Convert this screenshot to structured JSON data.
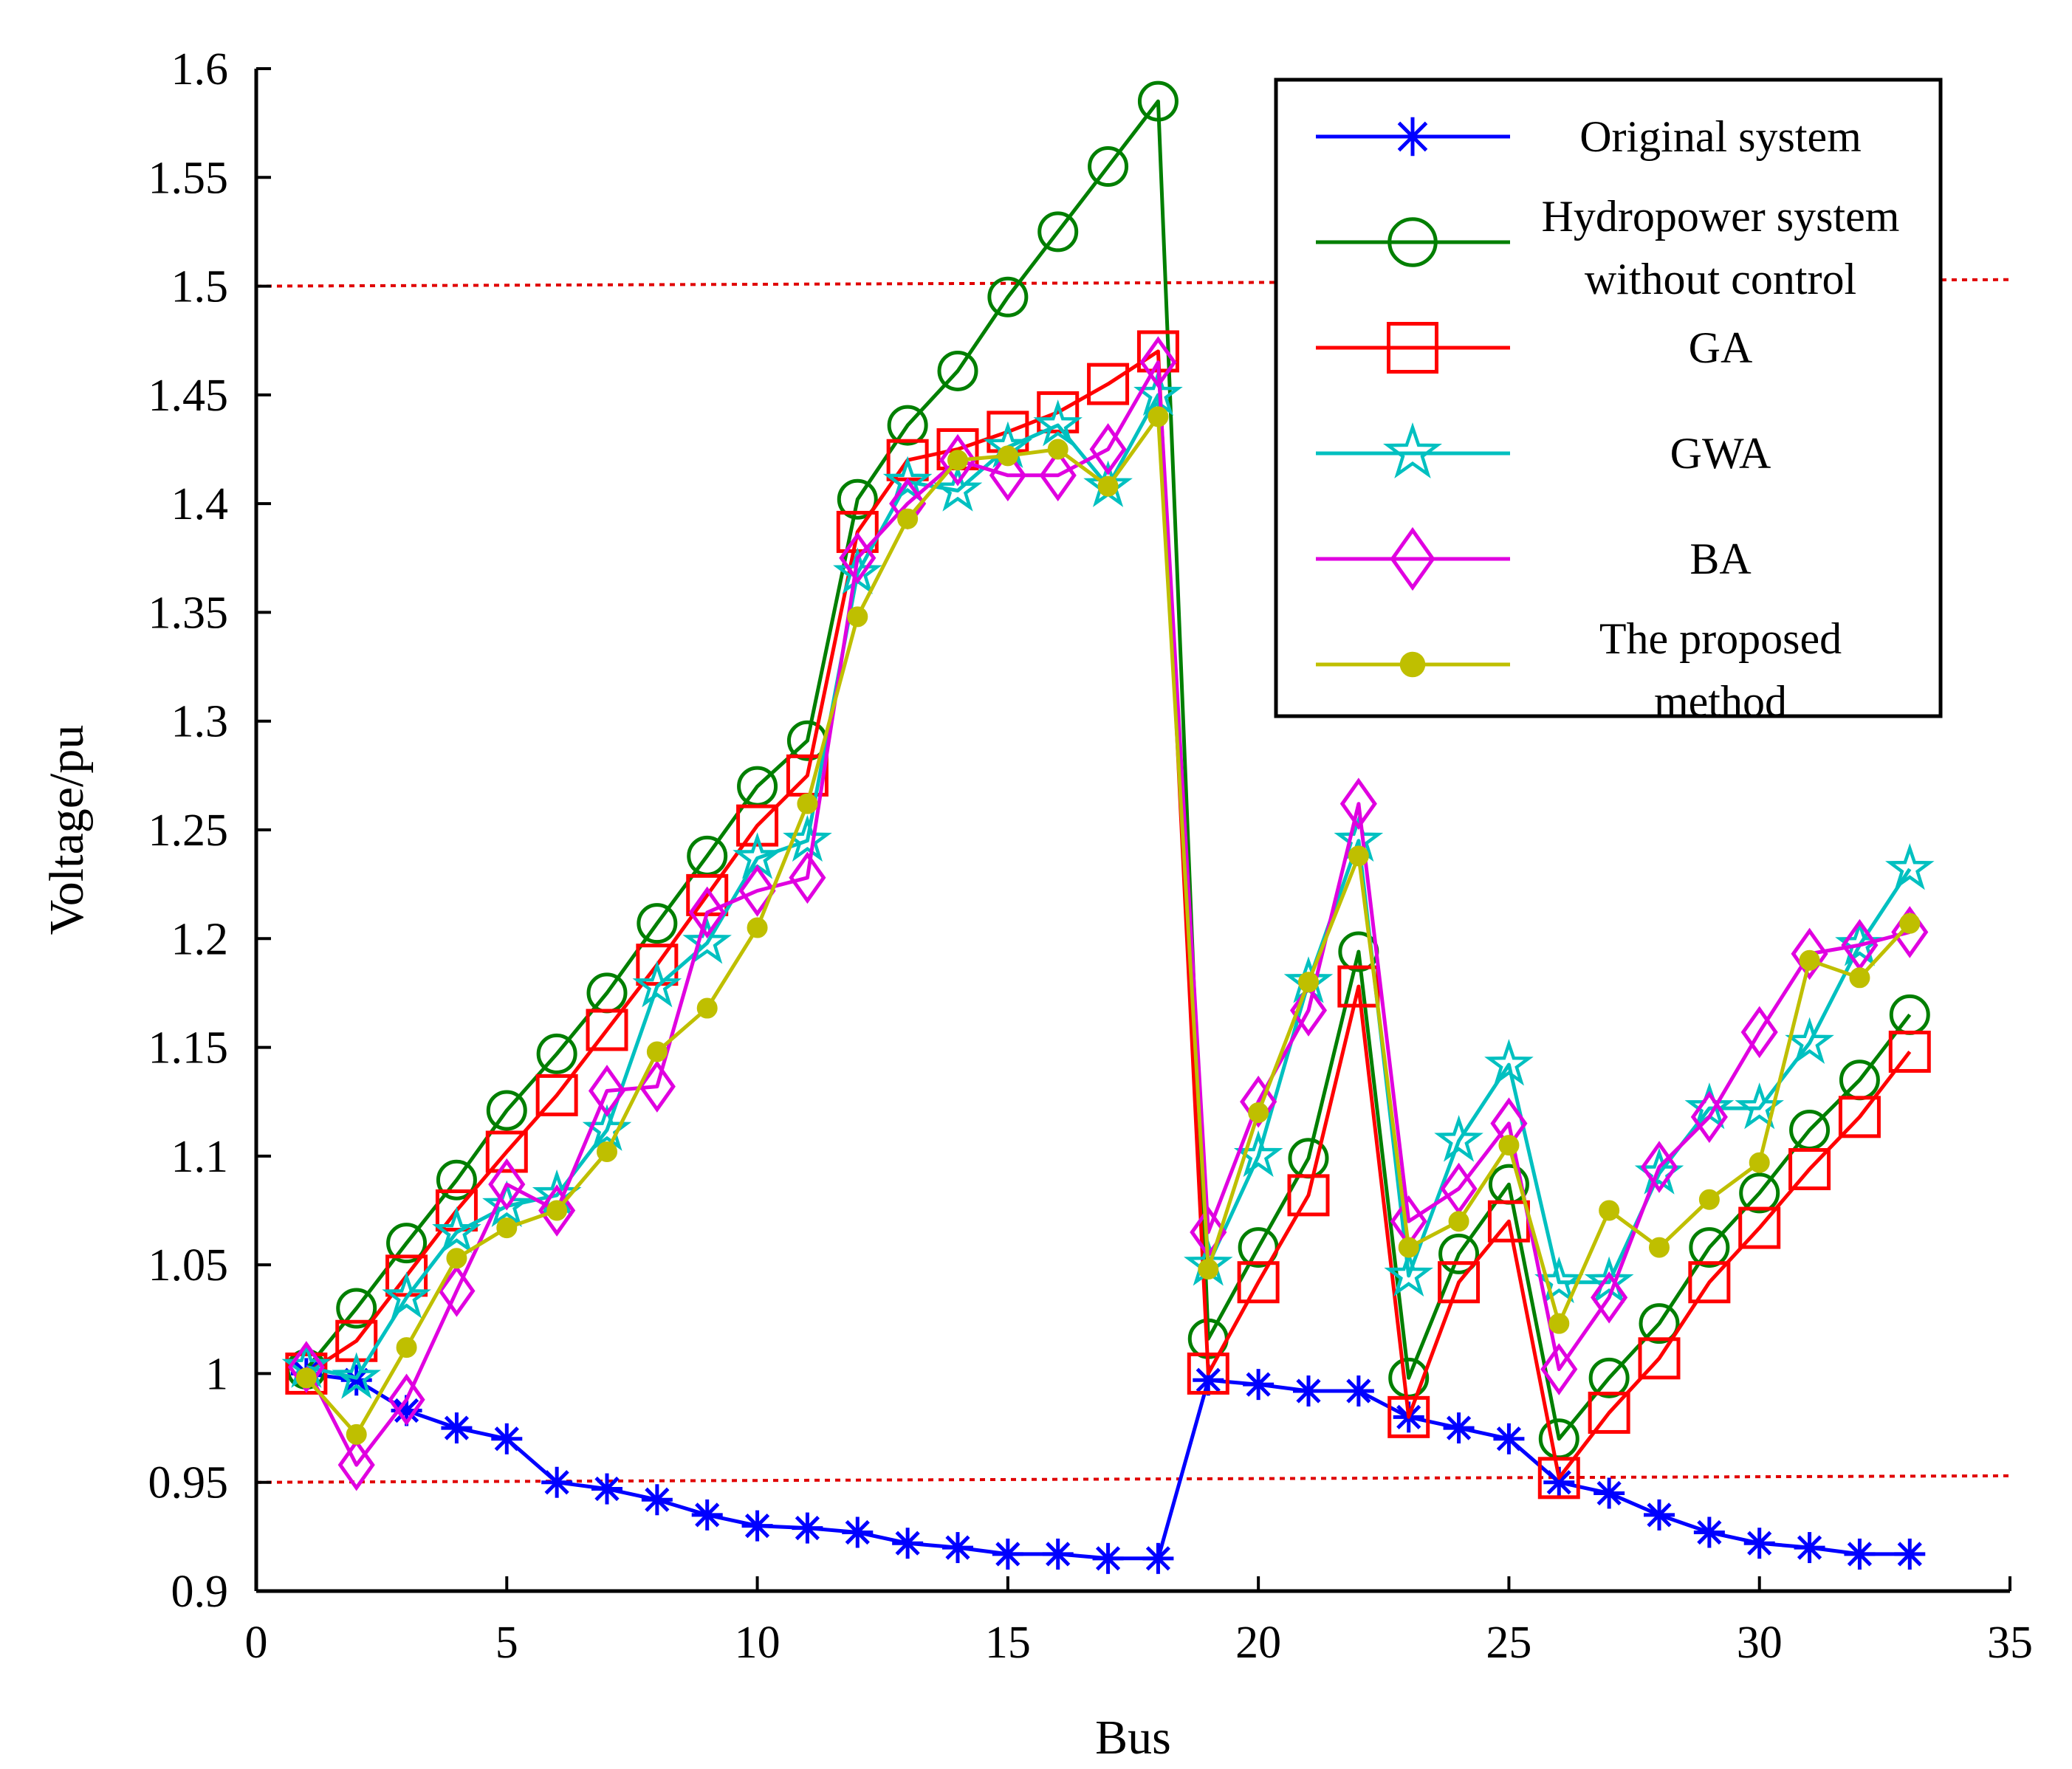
{
  "chart_data": {
    "type": "line",
    "title": "",
    "xlabel": "Bus",
    "ylabel": "Voltage/pu",
    "xlim": [
      0,
      35
    ],
    "ylim": [
      0.9,
      1.6
    ],
    "xticks": [
      0,
      5,
      10,
      15,
      20,
      25,
      30,
      35
    ],
    "xtick_labels": [
      "0",
      "5",
      "10",
      "15",
      "20",
      "25",
      "30",
      "35"
    ],
    "yticks": [
      0.9,
      0.95,
      1.0,
      1.05,
      1.1,
      1.15,
      1.2,
      1.25,
      1.3,
      1.35,
      1.4,
      1.45,
      1.5,
      1.55,
      1.6
    ],
    "ytick_labels": [
      "0.9",
      "0.95",
      "1",
      "1.05",
      "1.1",
      "1.15",
      "1.2",
      "1.25",
      "1.3",
      "1.35",
      "1.4",
      "1.45",
      "1.5",
      "1.55",
      "1.6"
    ],
    "reference_lines": [
      {
        "y_start": 1.5,
        "y_end": 1.503,
        "color": "#e00000",
        "style": "dotted"
      },
      {
        "y_start": 0.95,
        "y_end": 0.953,
        "color": "#e00000",
        "style": "dotted"
      }
    ],
    "legend_position": "top-right",
    "x": [
      1,
      2,
      3,
      4,
      5,
      6,
      7,
      8,
      9,
      10,
      11,
      12,
      13,
      14,
      15,
      16,
      17,
      18,
      19,
      20,
      21,
      22,
      23,
      24,
      25,
      26,
      27,
      28,
      29,
      30,
      31,
      32,
      33
    ],
    "series": [
      {
        "name": "Original system",
        "legend_lines": [
          "Original system"
        ],
        "color": "#0000ff",
        "marker": "asterisk",
        "values": [
          1.0,
          0.997,
          0.983,
          0.975,
          0.97,
          0.95,
          0.947,
          0.942,
          0.935,
          0.93,
          0.929,
          0.927,
          0.922,
          0.92,
          0.917,
          0.917,
          0.915,
          0.915,
          0.997,
          0.995,
          0.992,
          0.992,
          0.98,
          0.975,
          0.97,
          0.95,
          0.945,
          0.935,
          0.927,
          0.922,
          0.92,
          0.917,
          0.917
        ]
      },
      {
        "name": "Hydropower system without control",
        "legend_lines": [
          "Hydropower system",
          "without control"
        ],
        "color": "#007f00",
        "marker": "circle",
        "values": [
          1.002,
          1.03,
          1.06,
          1.089,
          1.121,
          1.147,
          1.175,
          1.207,
          1.238,
          1.27,
          1.291,
          1.402,
          1.436,
          1.461,
          1.495,
          1.525,
          1.555,
          1.585,
          1.016,
          1.058,
          1.099,
          1.194,
          0.998,
          1.055,
          1.087,
          0.97,
          0.998,
          1.023,
          1.058,
          1.083,
          1.112,
          1.135,
          1.165
        ]
      },
      {
        "name": "GA",
        "legend_lines": [
          "GA"
        ],
        "color": "#ff0000",
        "marker": "square",
        "values": [
          1.0,
          1.015,
          1.045,
          1.075,
          1.102,
          1.128,
          1.158,
          1.188,
          1.22,
          1.252,
          1.275,
          1.387,
          1.42,
          1.425,
          1.433,
          1.442,
          1.455,
          1.47,
          1.0,
          1.042,
          1.082,
          1.178,
          0.98,
          1.042,
          1.07,
          0.952,
          0.982,
          1.007,
          1.042,
          1.067,
          1.094,
          1.118,
          1.148
        ]
      },
      {
        "name": "GWA",
        "legend_lines": [
          "GWA"
        ],
        "color": "#00c0c0",
        "marker": "star",
        "values": [
          1.003,
          0.998,
          1.035,
          1.065,
          1.077,
          1.082,
          1.112,
          1.178,
          1.198,
          1.237,
          1.245,
          1.368,
          1.41,
          1.406,
          1.426,
          1.436,
          1.408,
          1.45,
          1.05,
          1.1,
          1.18,
          1.245,
          1.045,
          1.107,
          1.142,
          1.042,
          1.042,
          1.092,
          1.122,
          1.122,
          1.152,
          1.197,
          1.232
        ]
      },
      {
        "name": "BA",
        "legend_lines": [
          "BA"
        ],
        "color": "#e000e0",
        "marker": "diamond",
        "values": [
          1.003,
          0.958,
          0.988,
          1.038,
          1.087,
          1.075,
          1.13,
          1.132,
          1.212,
          1.222,
          1.228,
          1.375,
          1.4,
          1.42,
          1.413,
          1.413,
          1.425,
          1.465,
          1.065,
          1.125,
          1.167,
          1.262,
          1.07,
          1.085,
          1.115,
          1.002,
          1.035,
          1.095,
          1.118,
          1.157,
          1.193,
          1.197,
          1.203
        ]
      },
      {
        "name": "The proposed method",
        "legend_lines": [
          "The proposed",
          "method"
        ],
        "color": "#bfbf00",
        "marker": "dot",
        "values": [
          0.998,
          0.972,
          1.012,
          1.053,
          1.067,
          1.075,
          1.102,
          1.148,
          1.168,
          1.205,
          1.262,
          1.348,
          1.393,
          1.42,
          1.422,
          1.425,
          1.408,
          1.44,
          1.048,
          1.12,
          1.18,
          1.238,
          1.058,
          1.07,
          1.105,
          1.023,
          1.075,
          1.058,
          1.08,
          1.097,
          1.19,
          1.182,
          1.207
        ]
      }
    ]
  }
}
